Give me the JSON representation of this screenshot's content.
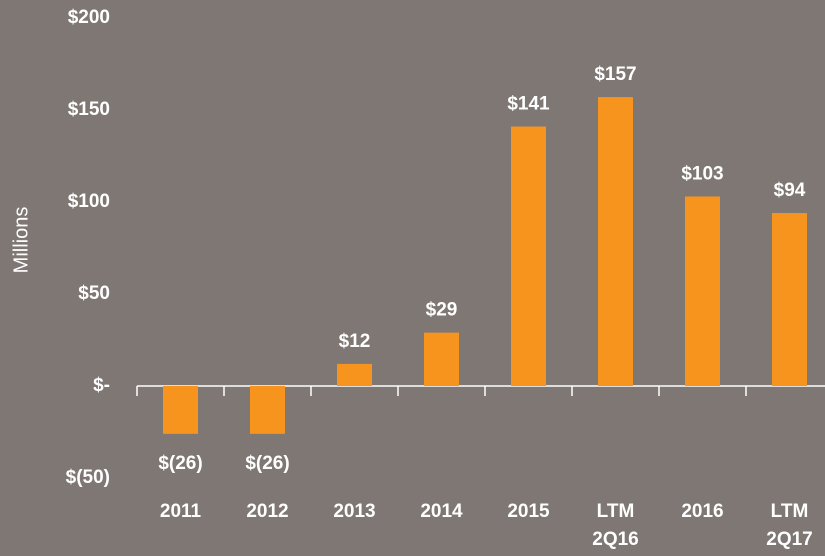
{
  "chart_data": {
    "type": "bar",
    "y_label": "Millions",
    "categories": [
      "2011",
      "2012",
      "2013",
      "2014",
      "2015",
      "LTM 2Q16",
      "2016",
      "LTM 2Q17"
    ],
    "values": [
      -26,
      -26,
      12,
      29,
      141,
      157,
      103,
      94
    ],
    "value_labels": [
      "$(26)",
      "$(26)",
      "$12",
      "$29",
      "$141",
      "$157",
      "$103",
      "$94"
    ],
    "color": "#f7941d",
    "ylim": [
      -50,
      200
    ],
    "yticks": [
      {
        "value": -50,
        "label": "$(50)"
      },
      {
        "value": 0,
        "label": "$-"
      },
      {
        "value": 50,
        "label": "$50"
      },
      {
        "value": 100,
        "label": "$100"
      },
      {
        "value": 150,
        "label": "$150"
      },
      {
        "value": 200,
        "label": "$200"
      }
    ],
    "grid": false
  }
}
